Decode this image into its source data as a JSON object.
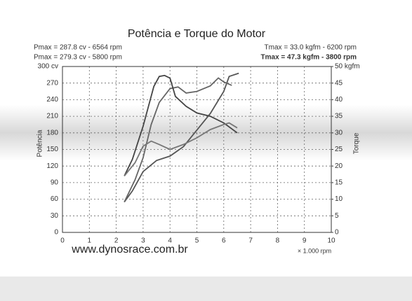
{
  "chart_data": {
    "type": "line",
    "title": "Potência e Torque do Motor",
    "annotations": [
      "Pmax = 287.8 cv - 6564 rpm",
      "Pmax = 279.3 cv - 5800 rpm",
      "Tmax = 33.0 kgfm - 6200 rpm",
      "Tmax = 47.3 kgfm - 3800 rpm"
    ],
    "xlabel": "× 1.000 rpm",
    "ylabel": "Potência",
    "y2label": "Torque",
    "source": "www.dynosrace.com.br",
    "xlim": [
      0,
      10
    ],
    "xticks": [
      0,
      1,
      2,
      3,
      4,
      5,
      6,
      7,
      8,
      9,
      10
    ],
    "ylim": [
      0,
      300
    ],
    "yticks": [
      0,
      30,
      60,
      90,
      120,
      150,
      180,
      210,
      240,
      270,
      {
        "value": 300,
        "label": "300 cv"
      }
    ],
    "y2lim": [
      0,
      50
    ],
    "y2ticks": [
      0,
      5,
      10,
      15,
      20,
      25,
      30,
      35,
      40,
      {
        "value": 45,
        "label": "45"
      },
      {
        "value": 50,
        "label": "50 kgfm"
      }
    ],
    "grid": true,
    "series": [
      {
        "color": "#555555",
        "x": [
          2.3,
          2.6,
          3,
          3.5,
          4,
          4.5,
          5,
          5.5,
          6,
          6.2,
          6.56
        ],
        "values": [
          55,
          75,
          110,
          130,
          138,
          155,
          185,
          215,
          255,
          282,
          287.8
        ]
      },
      {
        "color": "#666666",
        "x": [
          2.3,
          2.7,
          3,
          3.3,
          3.6,
          4,
          4.3,
          4.6,
          5,
          5.5,
          5.8,
          6,
          6.3
        ],
        "values": [
          55,
          95,
          135,
          195,
          235,
          260,
          263,
          252,
          255,
          265,
          279.3,
          272,
          266
        ]
      },
      {
        "color": "#444444",
        "axis": "y2",
        "x": [
          2.3,
          2.6,
          3,
          3.4,
          3.6,
          3.8,
          4,
          4.2,
          4.6,
          5,
          5.5,
          6,
          6.5
        ],
        "values": [
          17,
          22,
          32,
          44,
          47,
          47.3,
          46.5,
          41,
          38,
          36,
          35,
          33,
          30
        ]
      },
      {
        "color": "#777777",
        "axis": "y2",
        "x": [
          2.3,
          2.7,
          3,
          3.3,
          3.6,
          4,
          4.5,
          5,
          5.5,
          6,
          6.2,
          6.5
        ],
        "values": [
          17,
          21,
          26,
          27.5,
          26.5,
          25,
          26.5,
          28.5,
          31,
          32.5,
          33,
          31.5
        ]
      }
    ]
  }
}
